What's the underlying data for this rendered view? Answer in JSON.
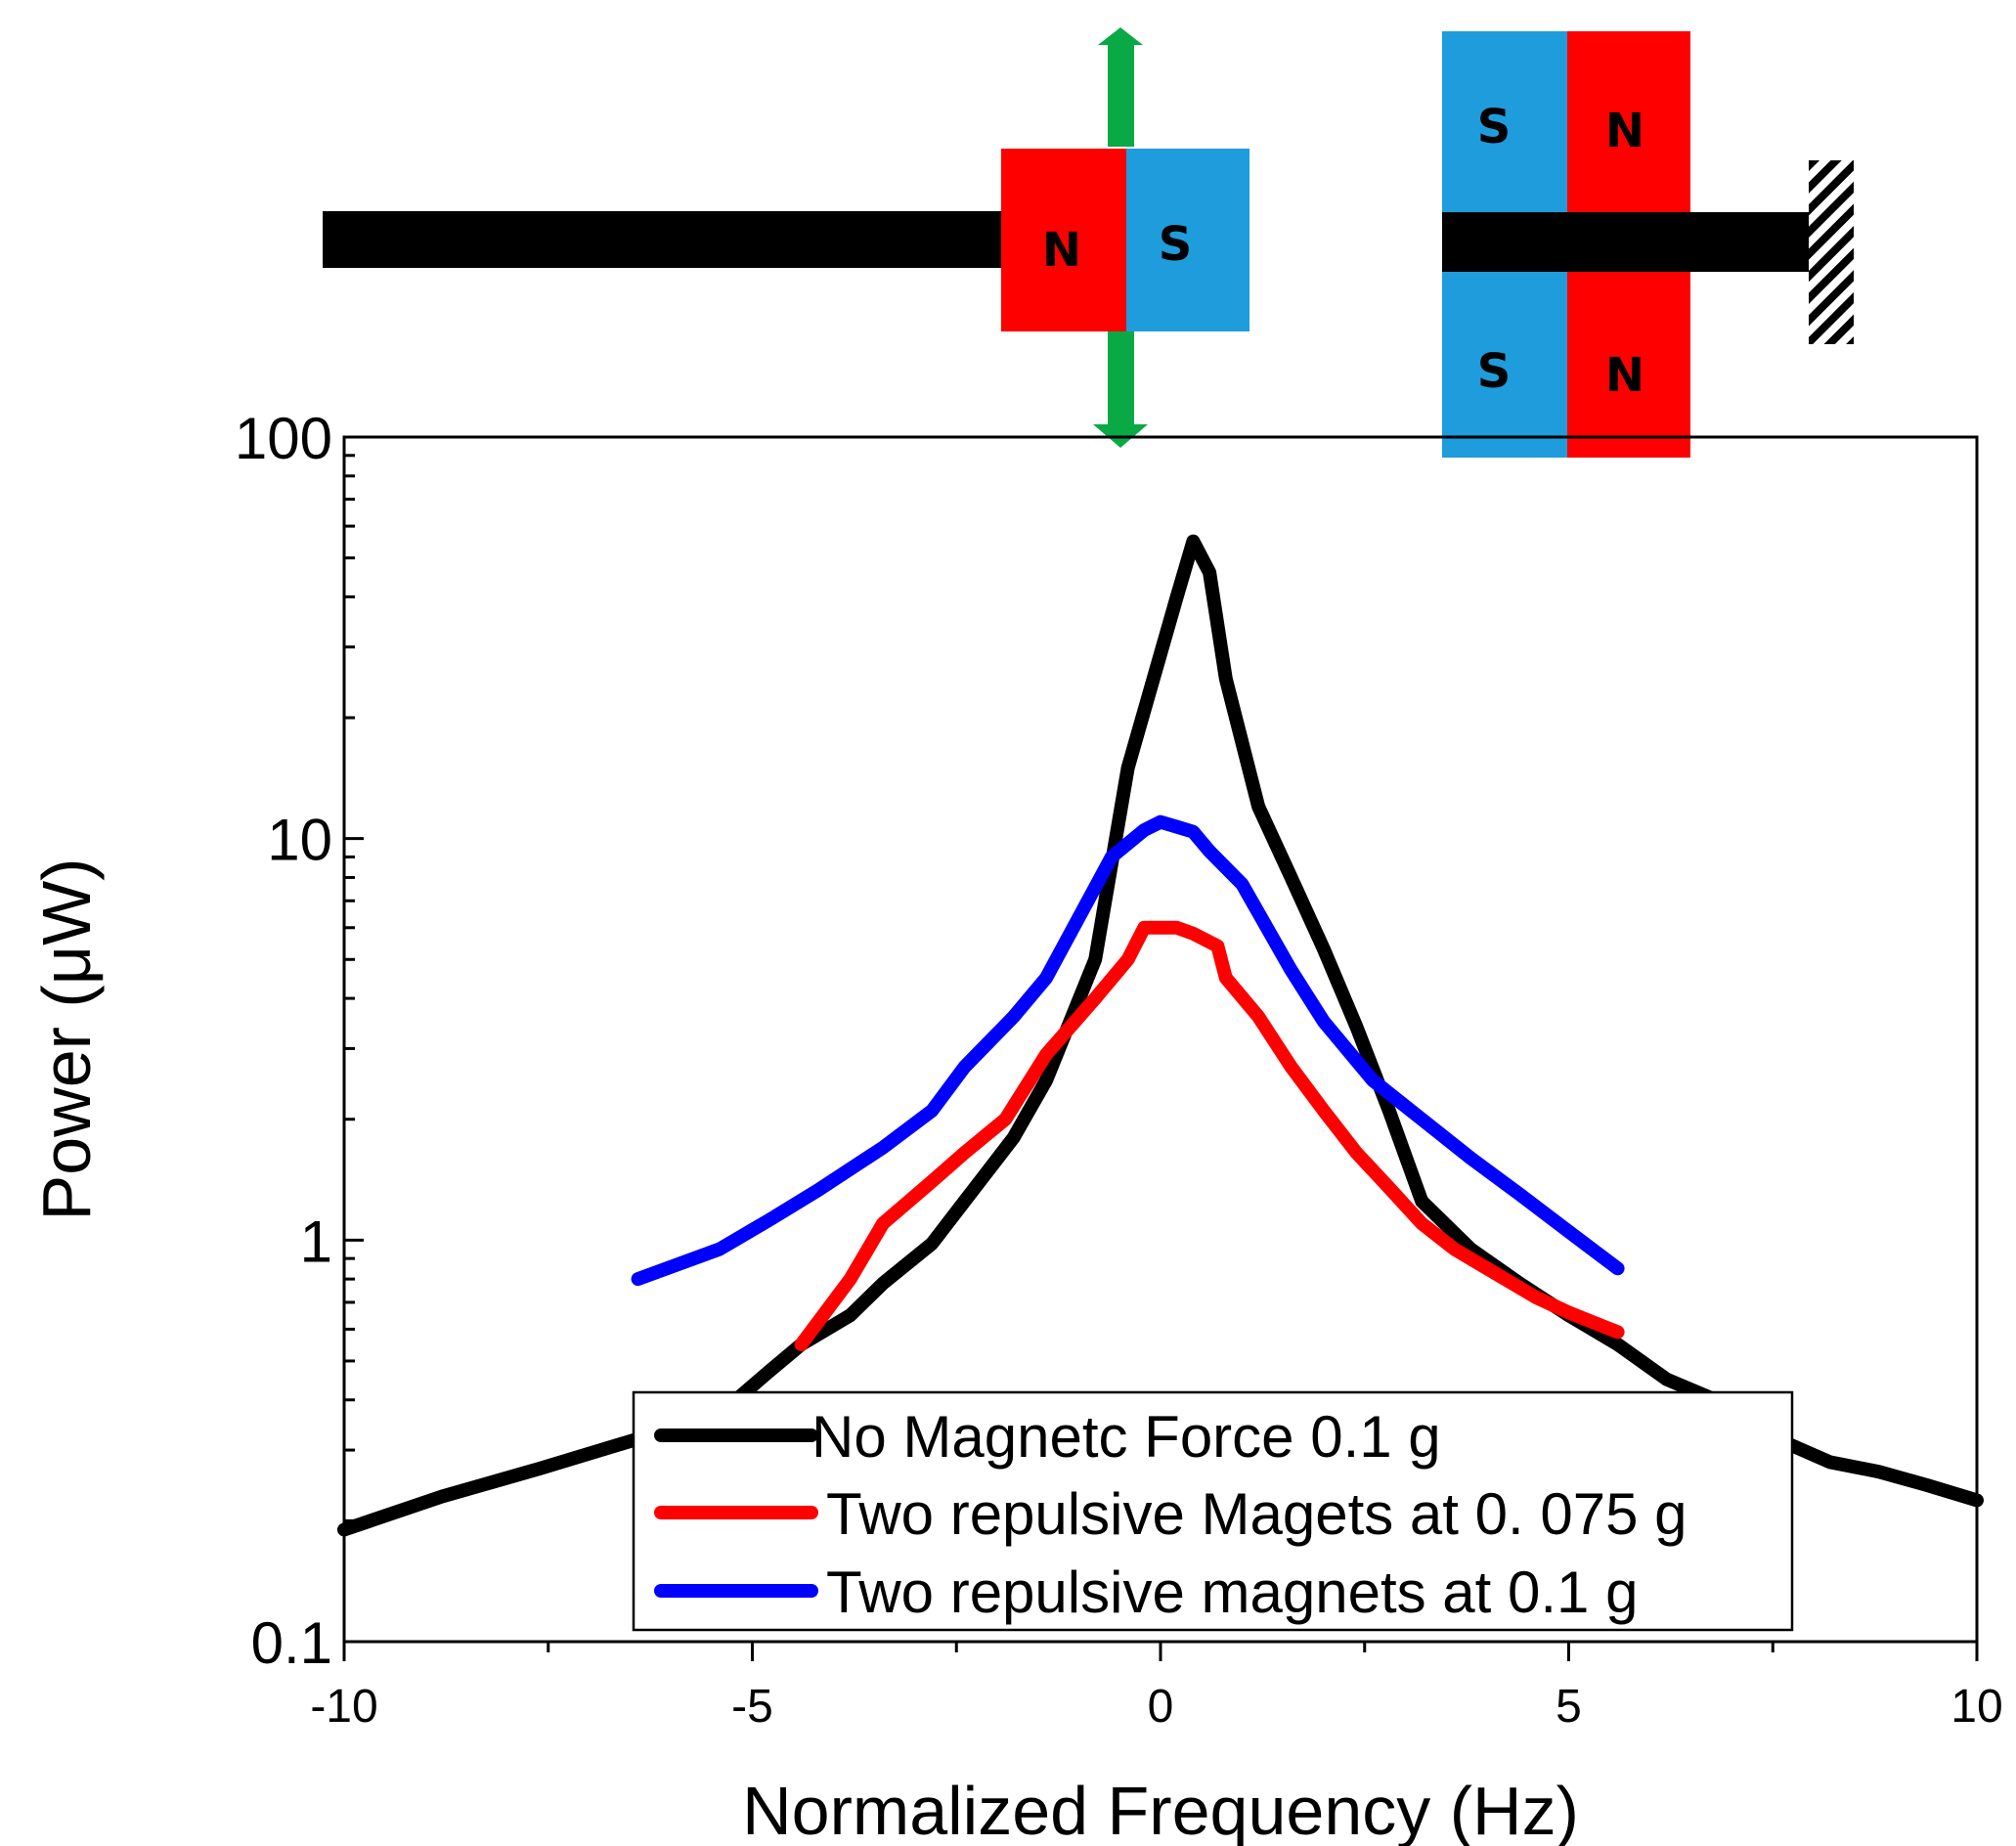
{
  "chart_data": {
    "type": "line",
    "title": "",
    "xlabel": "Normalized Frequency (Hz)",
    "ylabel": "Power (μW)",
    "x_scale": "linear",
    "y_scale": "log",
    "xlim": [
      -10,
      10
    ],
    "ylim": [
      0.1,
      100
    ],
    "x_ticks": [
      -10,
      -5,
      0,
      5,
      10
    ],
    "x_tick_labels": [
      "-10",
      "-5",
      "0",
      "5",
      "10"
    ],
    "y_ticks": [
      0.1,
      1,
      10,
      100
    ],
    "y_tick_labels": [
      "0.1",
      "1",
      "10",
      "100"
    ],
    "legend_position": "bottom-center",
    "series": [
      {
        "name": "No Magnetc Force 0.1 g",
        "color": "#000000",
        "x": [
          -10,
          -8.8,
          -7.6,
          -6.4,
          -5.2,
          -4.8,
          -4.4,
          -3.8,
          -3.4,
          -2.8,
          -2.4,
          -1.8,
          -1.4,
          -0.8,
          -0.4,
          0.2,
          0.4,
          0.6,
          0.8,
          1.2,
          1.6,
          2.0,
          2.4,
          2.8,
          3.2,
          3.8,
          4.4,
          5.0,
          5.6,
          6.2,
          6.8,
          7.4,
          8.2,
          8.8,
          9.4,
          10
        ],
        "y": [
          0.19,
          0.23,
          0.27,
          0.32,
          0.4,
          0.47,
          0.55,
          0.65,
          0.78,
          0.98,
          1.25,
          1.8,
          2.5,
          5.0,
          15.0,
          40.0,
          55.0,
          46.0,
          25.0,
          12.0,
          8.0,
          5.3,
          3.4,
          2.1,
          1.25,
          0.95,
          0.78,
          0.65,
          0.55,
          0.45,
          0.4,
          0.33,
          0.28,
          0.265,
          0.245,
          0.225
        ]
      },
      {
        "name": "Two repulsive Magets at 0. 075 g",
        "color": "#ff0000",
        "x": [
          -4.4,
          -3.8,
          -3.4,
          -2.8,
          -2.4,
          -1.9,
          -1.4,
          -0.8,
          -0.4,
          -0.2,
          0.2,
          0.4,
          0.7,
          0.8,
          1.2,
          1.6,
          2.0,
          2.4,
          2.8,
          3.2,
          3.6,
          4.0,
          4.6,
          5.0,
          5.6
        ],
        "y": [
          0.55,
          0.8,
          1.1,
          1.4,
          1.65,
          2.0,
          2.9,
          4.0,
          5.0,
          6.0,
          6.0,
          5.8,
          5.4,
          4.5,
          3.6,
          2.7,
          2.1,
          1.65,
          1.35,
          1.1,
          0.95,
          0.85,
          0.72,
          0.66,
          0.59
        ]
      },
      {
        "name": "Two repulsive magnets at 0.1 g",
        "color": "#0000ff",
        "x": [
          -6.4,
          -5.4,
          -4.8,
          -4.2,
          -3.4,
          -2.8,
          -2.4,
          -1.8,
          -1.4,
          -0.6,
          -0.2,
          0.0,
          0.2,
          0.4,
          0.6,
          1.0,
          1.6,
          2.0,
          2.6,
          3.2,
          3.8,
          4.4,
          5.0,
          5.6
        ],
        "y": [
          0.8,
          0.95,
          1.12,
          1.33,
          1.7,
          2.1,
          2.7,
          3.6,
          4.5,
          9.0,
          10.5,
          11.0,
          10.7,
          10.4,
          9.3,
          7.7,
          4.7,
          3.5,
          2.5,
          2.0,
          1.6,
          1.3,
          1.05,
          0.85
        ]
      }
    ]
  },
  "diagram": {
    "left_magnet": {
      "left_pole": "N",
      "right_pole": "S"
    },
    "right_magnets": {
      "top": {
        "left_pole": "S",
        "right_pole": "N"
      },
      "bottom": {
        "left_pole": "S",
        "right_pole": "N"
      }
    },
    "colors": {
      "north": "#ff0000",
      "south": "#1e9cdc",
      "arrow": "#09a946",
      "beam": "#000000"
    }
  }
}
